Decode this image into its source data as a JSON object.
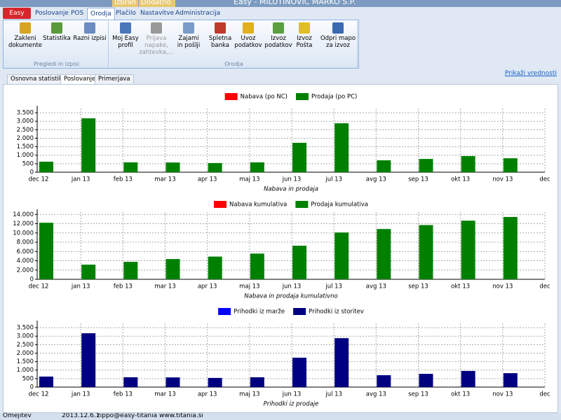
{
  "window": {
    "title": "Easy - MILUTINOVIĆ MARKO S.P.",
    "context_tabs": [
      "Izbran",
      "Dodatno"
    ]
  },
  "ribbon": {
    "app_tab": "Easy",
    "tabs": [
      "Poslovanje",
      "POS",
      "Orodja",
      "Plačilo",
      "Nastavitve",
      "Administracija"
    ],
    "selected_tab": 2,
    "groups": [
      {
        "label": "Pregledi in izpisi",
        "buttons": [
          {
            "lines": [
              "Zakleni",
              "dokumente"
            ]
          },
          {
            "lines": [
              "Statistika"
            ]
          },
          {
            "lines": [
              "Razni izpisi"
            ]
          }
        ]
      },
      {
        "label": "Orodja",
        "buttons": [
          {
            "lines": [
              "Moj Easy",
              "profil"
            ]
          },
          {
            "lines": [
              "Prijava",
              "napake,",
              "zahtevka,..."
            ]
          },
          {
            "lines": [
              "Zajami",
              "in pošlji"
            ]
          },
          {
            "lines": [
              "Spletna",
              "banka"
            ]
          },
          {
            "lines": [
              "Uvoz",
              "podatkov"
            ]
          },
          {
            "lines": [
              "Izvoz",
              "podatkov"
            ]
          },
          {
            "lines": [
              "Izvoz",
              "Pošta"
            ]
          },
          {
            "lines": [
              "Odpri mapo",
              "za izvoz"
            ]
          }
        ]
      }
    ]
  },
  "subtabs": [
    "Osnovna statistika",
    "Poslovanje",
    "Primerjava"
  ],
  "selected_subtab": 1,
  "link": "Prikaži vrednosti",
  "chart_data": [
    {
      "type": "bar",
      "xlabel": "Nabava in prodaja",
      "legend": "top",
      "grid": true,
      "categories": [
        "dec 12",
        "jan 13",
        "feb 13",
        "mar 13",
        "apr 13",
        "maj 13",
        "jun 13",
        "jul 13",
        "avg 13",
        "sep 13",
        "okt 13",
        "nov 13",
        "dec"
      ],
      "series": [
        {
          "name": "Nabava (po NC)",
          "color": "#ff0000",
          "values": [
            0,
            0,
            0,
            0,
            0,
            0,
            0,
            0,
            0,
            0,
            0,
            0,
            null
          ]
        },
        {
          "name": "Prodaja (po PC)",
          "color": "#008000",
          "values": [
            620,
            3170,
            580,
            570,
            540,
            580,
            1730,
            2880,
            700,
            780,
            950,
            820,
            null
          ]
        }
      ],
      "ylim": [
        0,
        3750
      ],
      "yticks": [
        0,
        500,
        {
          "value": 1000,
          "label": "1.000"
        },
        {
          "value": 1500,
          "label": "1.500"
        },
        {
          "value": 2000,
          "label": "2.000"
        },
        {
          "value": 2500,
          "label": "2.500"
        },
        {
          "value": 3000,
          "label": "3.000"
        },
        {
          "value": 3500,
          "label": "3.500"
        }
      ]
    },
    {
      "type": "bar",
      "xlabel": "Nabava in prodaja kumulativno",
      "legend": "top",
      "grid": true,
      "categories": [
        "dec 12",
        "jan 13",
        "feb 13",
        "mar 13",
        "apr 13",
        "maj 13",
        "jun 13",
        "jul 13",
        "avg 13",
        "sep 13",
        "okt 13",
        "nov 13",
        "dec"
      ],
      "series": [
        {
          "name": "Nabava kumulativa",
          "color": "#ff0000",
          "values": [
            0,
            0,
            0,
            0,
            0,
            0,
            0,
            0,
            0,
            0,
            0,
            0,
            null
          ]
        },
        {
          "name": "Prodaja kumulativa",
          "color": "#008000",
          "values": [
            12200,
            3160,
            3760,
            4370,
            4900,
            5550,
            7250,
            10100,
            10850,
            11700,
            12650,
            13450,
            null
          ]
        }
      ],
      "ylim": [
        0,
        14500
      ],
      "yticks": [
        0,
        {
          "value": 2000,
          "label": "2.000"
        },
        {
          "value": 4000,
          "label": "4.000"
        },
        {
          "value": 6000,
          "label": "6.000"
        },
        {
          "value": 8000,
          "label": "8.000"
        },
        {
          "value": 10000,
          "label": "10.000"
        },
        {
          "value": 12000,
          "label": "12.000"
        },
        {
          "value": 14000,
          "label": "14.000"
        }
      ]
    },
    {
      "type": "bar",
      "xlabel": "Prihodki iz prodaje",
      "legend": "top",
      "grid": true,
      "categories": [
        "dec 12",
        "jan 13",
        "feb 13",
        "mar 13",
        "apr 13",
        "maj 13",
        "jun 13",
        "jul 13",
        "avg 13",
        "sep 13",
        "okt 13",
        "nov 13",
        "dec"
      ],
      "series": [
        {
          "name": "Prihodki iz marže",
          "color": "#0000ff",
          "values": [
            0,
            0,
            0,
            0,
            0,
            0,
            0,
            0,
            0,
            0,
            0,
            0,
            null
          ]
        },
        {
          "name": "Prihodki iz storitev",
          "color": "#000080",
          "values": [
            620,
            3170,
            580,
            570,
            540,
            580,
            1730,
            2880,
            700,
            780,
            950,
            820,
            null
          ]
        }
      ],
      "ylim": [
        0,
        3750
      ],
      "yticks": [
        0,
        500,
        {
          "value": 1000,
          "label": "1.000"
        },
        {
          "value": 1500,
          "label": "1.500"
        },
        {
          "value": 2000,
          "label": "2.000"
        },
        {
          "value": 2500,
          "label": "2.500"
        },
        {
          "value": 3000,
          "label": "3.000"
        },
        {
          "value": 3500,
          "label": "3.500"
        }
      ]
    }
  ],
  "status": [
    "Omejitev",
    "2013.12.6.1",
    "zippo@easy-titania www.titania.si"
  ]
}
